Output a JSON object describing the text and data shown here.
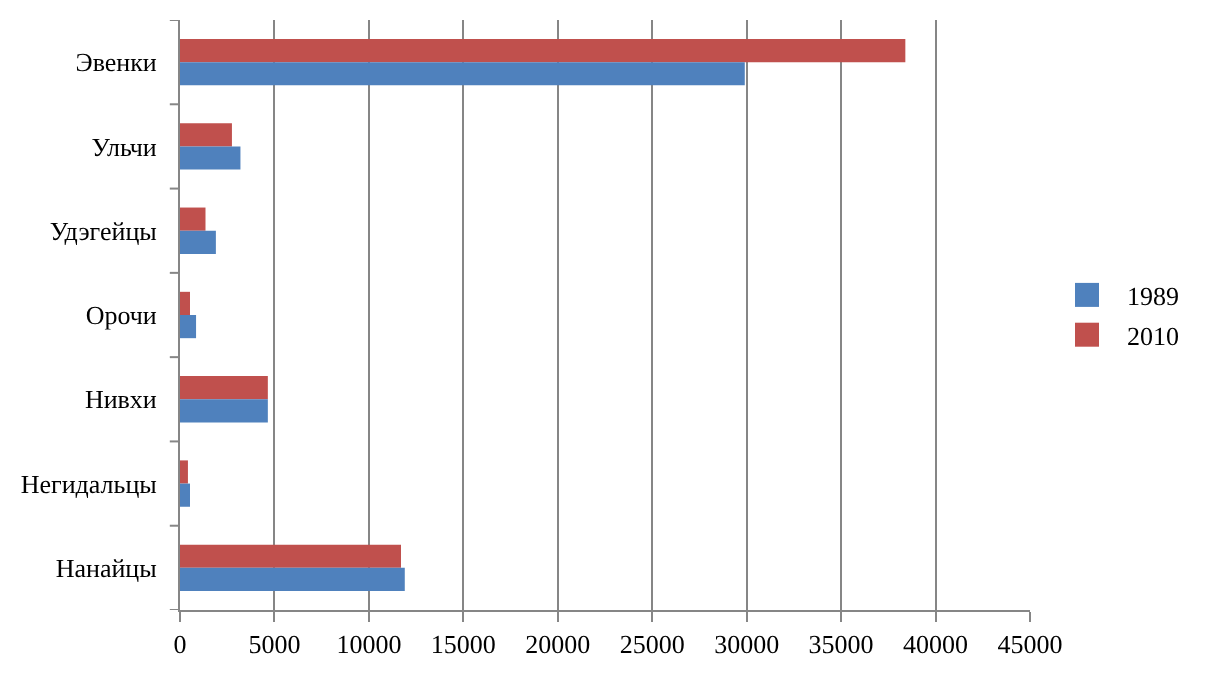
{
  "chart_data": {
    "type": "bar",
    "orientation": "horizontal",
    "categories": [
      "Эвенки",
      "Ульчи",
      "Удэгейцы",
      "Орочи",
      "Нивхи",
      "Негидальцы",
      "Нанайцы"
    ],
    "series": [
      {
        "name": "1989",
        "color": "#4f81bd",
        "values": [
          29900,
          3200,
          1900,
          850,
          4650,
          530,
          11900
        ]
      },
      {
        "name": "2010",
        "color": "#c0504d",
        "values": [
          38400,
          2750,
          1350,
          530,
          4650,
          420,
          11700
        ]
      }
    ],
    "xlim": [
      0,
      45000
    ],
    "xticks": [
      0,
      5000,
      10000,
      15000,
      20000,
      25000,
      30000,
      35000,
      40000,
      45000
    ],
    "grid": "x",
    "legend": "right"
  }
}
